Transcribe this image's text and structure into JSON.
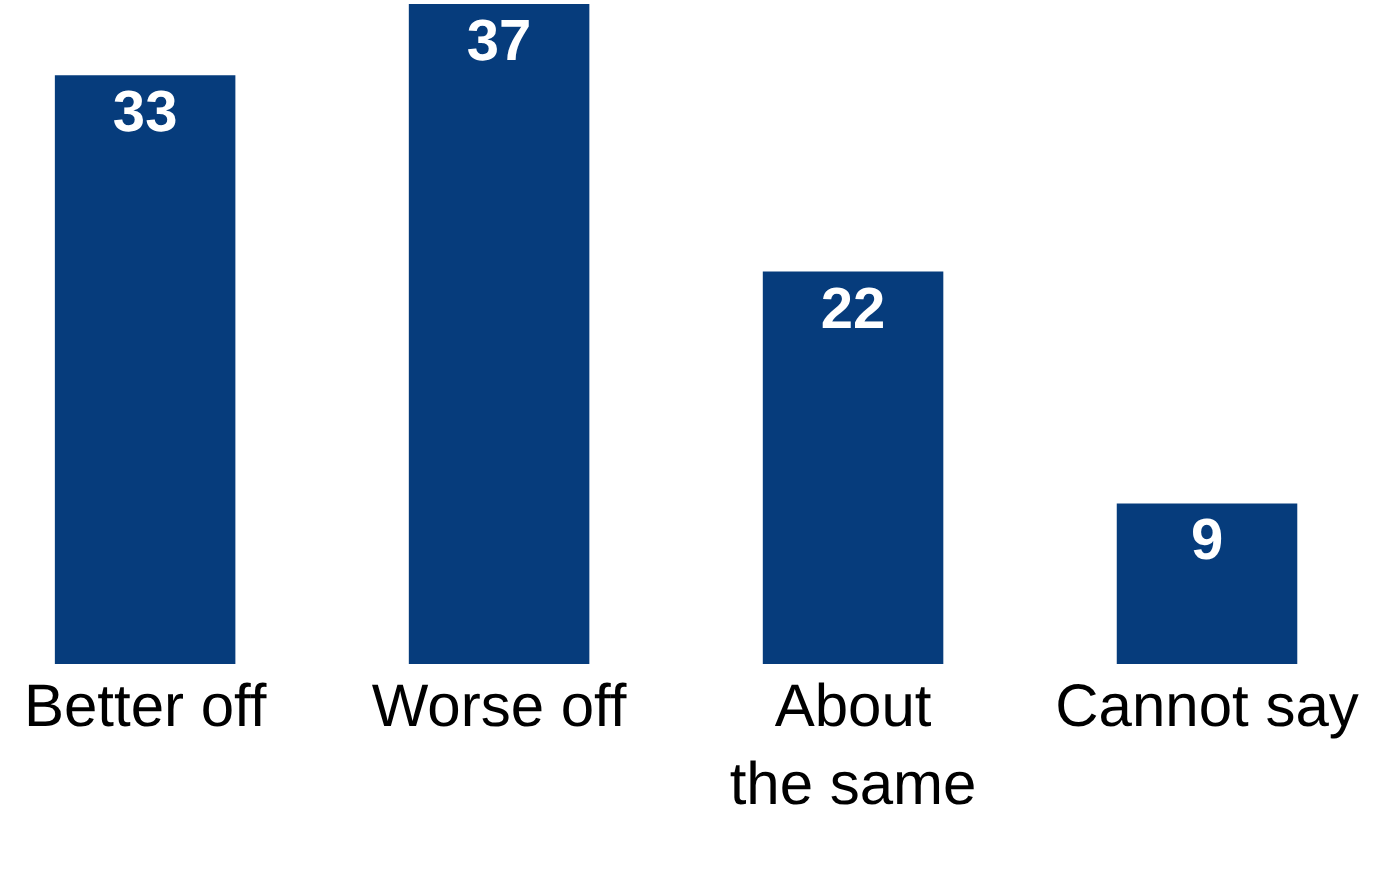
{
  "chart_data": {
    "type": "bar",
    "categories": [
      "Better off",
      "Worse off",
      "About the same",
      "Cannot say"
    ],
    "values": [
      33,
      37,
      22,
      9
    ],
    "color": "#063c7c",
    "data_labels": true,
    "grid": false
  }
}
